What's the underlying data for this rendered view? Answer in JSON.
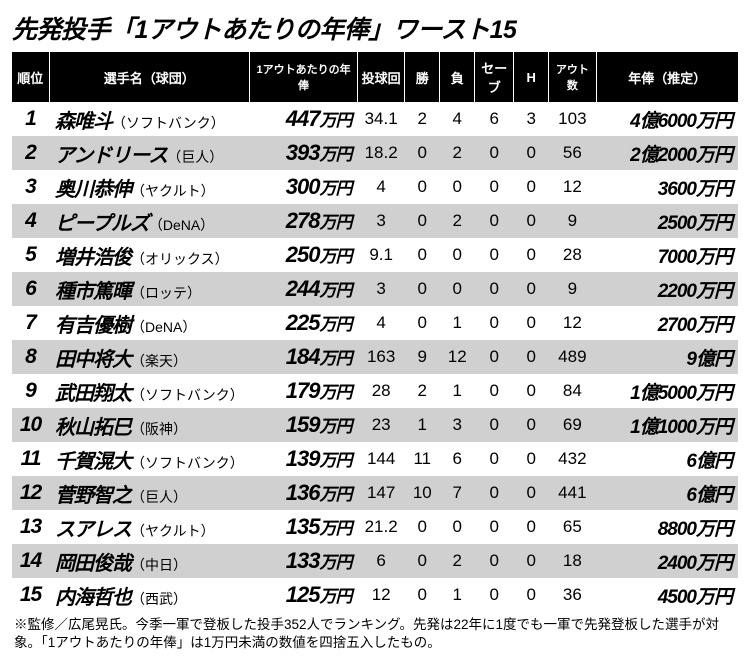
{
  "title": "先発投手「1アウトあたりの年俸」ワースト15",
  "columns": {
    "rank": "順位",
    "player": "選手名（球団）",
    "perout": "1アウトあたりの年俸",
    "ip": "投球回",
    "w": "勝",
    "l": "負",
    "sv": "セーブ",
    "h": "H",
    "outs": "アウト数",
    "salary": "年俸（推定）"
  },
  "unit_perout": "万円",
  "rows": [
    {
      "rank": "1",
      "name": "森唯斗",
      "team": "（ソフトバンク）",
      "perout": "447",
      "ip": "34.1",
      "w": "2",
      "l": "4",
      "sv": "6",
      "h": "3",
      "outs": "103",
      "salary": "4億6000万円"
    },
    {
      "rank": "2",
      "name": "アンドリース",
      "team": "（巨人）",
      "perout": "393",
      "ip": "18.2",
      "w": "0",
      "l": "2",
      "sv": "0",
      "h": "0",
      "outs": "56",
      "salary": "2億2000万円"
    },
    {
      "rank": "3",
      "name": "奥川恭伸",
      "team": "（ヤクルト）",
      "perout": "300",
      "ip": "4",
      "w": "0",
      "l": "0",
      "sv": "0",
      "h": "0",
      "outs": "12",
      "salary": "3600万円"
    },
    {
      "rank": "4",
      "name": "ピープルズ",
      "team": "（DeNA）",
      "perout": "278",
      "ip": "3",
      "w": "0",
      "l": "2",
      "sv": "0",
      "h": "0",
      "outs": "9",
      "salary": "2500万円"
    },
    {
      "rank": "5",
      "name": "増井浩俊",
      "team": "（オリックス）",
      "perout": "250",
      "ip": "9.1",
      "w": "0",
      "l": "0",
      "sv": "0",
      "h": "0",
      "outs": "28",
      "salary": "7000万円"
    },
    {
      "rank": "6",
      "name": "種市篤暉",
      "team": "（ロッテ）",
      "perout": "244",
      "ip": "3",
      "w": "0",
      "l": "0",
      "sv": "0",
      "h": "0",
      "outs": "9",
      "salary": "2200万円"
    },
    {
      "rank": "7",
      "name": "有吉優樹",
      "team": "（DeNA）",
      "perout": "225",
      "ip": "4",
      "w": "0",
      "l": "1",
      "sv": "0",
      "h": "0",
      "outs": "12",
      "salary": "2700万円"
    },
    {
      "rank": "8",
      "name": "田中将大",
      "team": "（楽天）",
      "perout": "184",
      "ip": "163",
      "w": "9",
      "l": "12",
      "sv": "0",
      "h": "0",
      "outs": "489",
      "salary": "9億円"
    },
    {
      "rank": "9",
      "name": "武田翔太",
      "team": "（ソフトバンク）",
      "perout": "179",
      "ip": "28",
      "w": "2",
      "l": "1",
      "sv": "0",
      "h": "0",
      "outs": "84",
      "salary": "1億5000万円"
    },
    {
      "rank": "10",
      "name": "秋山拓巳",
      "team": "（阪神）",
      "perout": "159",
      "ip": "23",
      "w": "1",
      "l": "3",
      "sv": "0",
      "h": "0",
      "outs": "69",
      "salary": "1億1000万円"
    },
    {
      "rank": "11",
      "name": "千賀滉大",
      "team": "（ソフトバンク）",
      "perout": "139",
      "ip": "144",
      "w": "11",
      "l": "6",
      "sv": "0",
      "h": "0",
      "outs": "432",
      "salary": "6億円"
    },
    {
      "rank": "12",
      "name": "菅野智之",
      "team": "（巨人）",
      "perout": "136",
      "ip": "147",
      "w": "10",
      "l": "7",
      "sv": "0",
      "h": "0",
      "outs": "441",
      "salary": "6億円"
    },
    {
      "rank": "13",
      "name": "スアレス",
      "team": "（ヤクルト）",
      "perout": "135",
      "ip": "21.2",
      "w": "0",
      "l": "0",
      "sv": "0",
      "h": "0",
      "outs": "65",
      "salary": "8800万円"
    },
    {
      "rank": "14",
      "name": "岡田俊哉",
      "team": "（中日）",
      "perout": "133",
      "ip": "6",
      "w": "0",
      "l": "2",
      "sv": "0",
      "h": "0",
      "outs": "18",
      "salary": "2400万円"
    },
    {
      "rank": "15",
      "name": "内海哲也",
      "team": "（西武）",
      "perout": "125",
      "ip": "12",
      "w": "0",
      "l": "1",
      "sv": "0",
      "h": "0",
      "outs": "36",
      "salary": "4500万円"
    }
  ],
  "footnote": "※監修／広尾晃氏。今季一軍で登板した投手352人でランキング。先発は22年に1度でも一軍で先発登板した選手が対象。「1アウトあたりの年俸」は1万円未満の数値を四捨五入したもの。",
  "colors": {
    "header_bg": "#000000",
    "header_fg": "#ffffff",
    "row_even_bg": "#d0d0d0",
    "row_odd_bg": "#ffffff",
    "text": "#000000"
  }
}
